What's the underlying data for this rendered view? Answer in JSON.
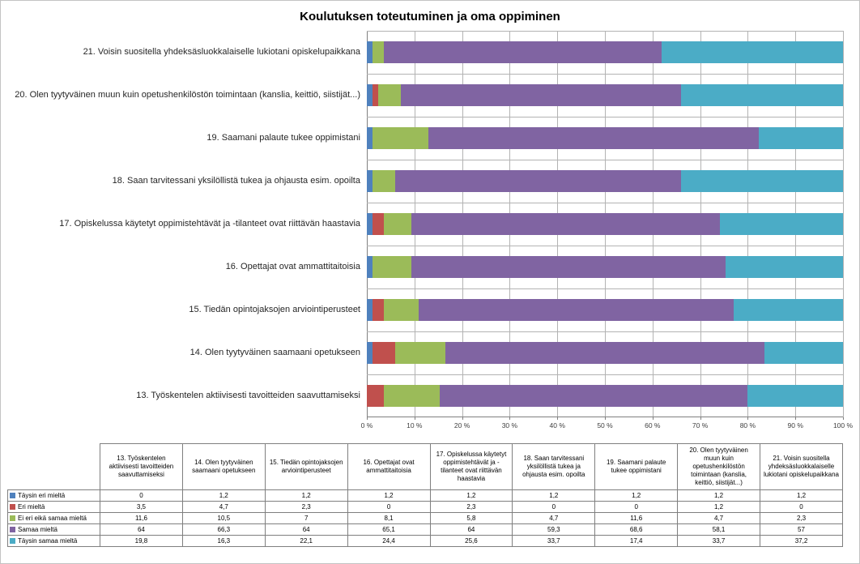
{
  "chart_data": {
    "type": "bar",
    "variant": "100-percent-stacked",
    "orientation": "horizontal",
    "title": "Koulutuksen toteutuminen ja oma oppiminen",
    "categories": [
      "13. Työskentelen aktiivisesti tavoitteiden saavuttamiseksi",
      "14. Olen tyytyväinen saamaani opetukseen",
      "15. Tiedän opintojaksojen arviointiperusteet",
      "16. Opettajat ovat ammattitaitoisia",
      "17. Opiskelussa käytetyt oppimistehtävät ja -tilanteet ovat riittävän haastavia",
      "18. Saan tarvitessani yksilöllistä tukea ja ohjausta esim. opoilta",
      "19. Saamani palaute tukee oppimistani",
      "20. Olen tyytyväinen muun kuin opetushenkilöstön toimintaan (kanslia, keittiö, siistijät...)",
      "21. Voisin suositella yhdeksäsluokkalaiselle lukiotani opiskelupaikkana"
    ],
    "category_display_note": "displayed top-to-bottom from item 21 down to item 13",
    "series": [
      {
        "name": "Täysin eri mieltä",
        "color": "#4F81BD",
        "values": [
          0,
          1.2,
          1.2,
          1.2,
          1.2,
          1.2,
          1.2,
          1.2,
          1.2
        ]
      },
      {
        "name": "Eri mieltä",
        "color": "#C0504D",
        "values": [
          3.5,
          4.7,
          2.3,
          0,
          2.3,
          0,
          0,
          1.2,
          0
        ]
      },
      {
        "name": "Ei eri eikä samaa mieltä",
        "color": "#9BBB59",
        "values": [
          11.6,
          10.5,
          7,
          8.1,
          5.8,
          4.7,
          11.6,
          4.7,
          2.3
        ]
      },
      {
        "name": "Samaa mieltä",
        "color": "#8064A2",
        "values": [
          64,
          66.3,
          64,
          65.1,
          64,
          59.3,
          68.6,
          58.1,
          57
        ]
      },
      {
        "name": "Täysin samaa mieltä",
        "color": "#4BACC6",
        "values": [
          19.8,
          16.3,
          22.1,
          24.4,
          25.6,
          33.7,
          17.4,
          33.7,
          37.2
        ]
      }
    ],
    "x_ticks": [
      "0 %",
      "10 %",
      "20 %",
      "30 %",
      "40 %",
      "50 %",
      "60 %",
      "70 %",
      "80 %",
      "90 %",
      "100 %"
    ],
    "xlim": [
      0,
      100
    ],
    "grid": true,
    "legend_position": "table-row-labels"
  },
  "table": {
    "rows": [
      {
        "label": "Täysin eri mieltä",
        "values": [
          "0",
          "1,2",
          "1,2",
          "1,2",
          "1,2",
          "1,2",
          "1,2",
          "1,2",
          "1,2"
        ]
      },
      {
        "label": "Eri mieltä",
        "values": [
          "3,5",
          "4,7",
          "2,3",
          "0",
          "2,3",
          "0",
          "0",
          "1,2",
          "0"
        ]
      },
      {
        "label": "Ei eri eikä samaa mieltä",
        "values": [
          "11,6",
          "10,5",
          "7",
          "8,1",
          "5,8",
          "4,7",
          "11,6",
          "4,7",
          "2,3"
        ]
      },
      {
        "label": "Samaa mieltä",
        "values": [
          "64",
          "66,3",
          "64",
          "65,1",
          "64",
          "59,3",
          "68,6",
          "58,1",
          "57"
        ]
      },
      {
        "label": "Täysin samaa mieltä",
        "values": [
          "19,8",
          "16,3",
          "22,1",
          "24,4",
          "25,6",
          "33,7",
          "17,4",
          "33,7",
          "37,2"
        ]
      }
    ]
  }
}
